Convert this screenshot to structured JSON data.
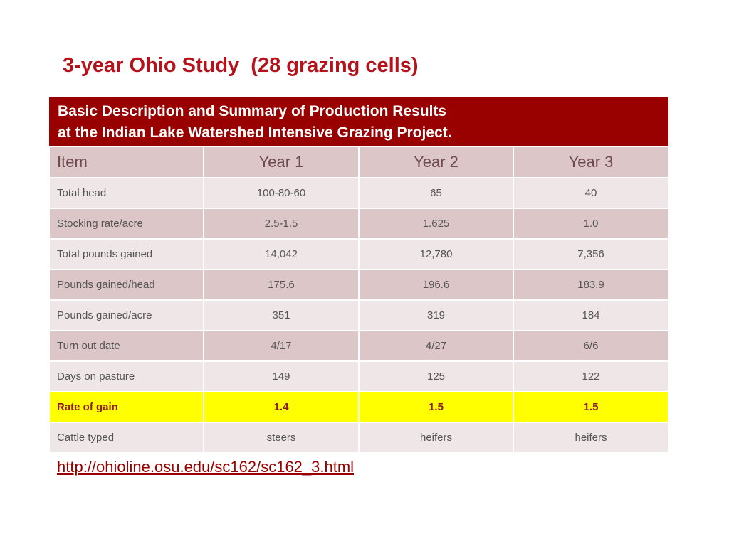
{
  "title": "3-year Ohio Study  (28 grazing cells)",
  "table": {
    "banner_line1": "Basic Description and Summary of Production Results",
    "banner_line2": "at the Indian Lake Watershed Intensive Grazing Project.",
    "headers": [
      "Item",
      "Year 1",
      "Year 2",
      "Year 3"
    ],
    "rows": [
      {
        "item": "Total head",
        "year1": "100-80-60",
        "year2": "65",
        "year3": "40"
      },
      {
        "item": "Stocking rate/acre",
        "year1": "2.5-1.5",
        "year2": "1.625",
        "year3": "1.0"
      },
      {
        "item": "Total pounds gained",
        "year1": "14,042",
        "year2": "12,780",
        "year3": "7,356"
      },
      {
        "item": "Pounds gained/head",
        "year1": "175.6",
        "year2": "196.6",
        "year3": "183.9"
      },
      {
        "item": "Pounds gained/acre",
        "year1": "351",
        "year2": "319",
        "year3": "184"
      },
      {
        "item": "Turn out date",
        "year1": "4/17",
        "year2": "4/27",
        "year3": "6/6"
      },
      {
        "item": "Days on pasture",
        "year1": "149",
        "year2": "125",
        "year3": "122"
      },
      {
        "item": "Rate of gain",
        "year1": "1.4",
        "year2": "1.5",
        "year3": "1.5"
      },
      {
        "item": "Cattle typed",
        "year1": "steers",
        "year2": "heifers",
        "year3": "heifers"
      }
    ]
  },
  "source_link": "http://ohioline.osu.edu/sc162/sc162_3.html",
  "colors": {
    "title": "#b5121b",
    "banner": "#990000",
    "highlight": "#ffff00"
  }
}
